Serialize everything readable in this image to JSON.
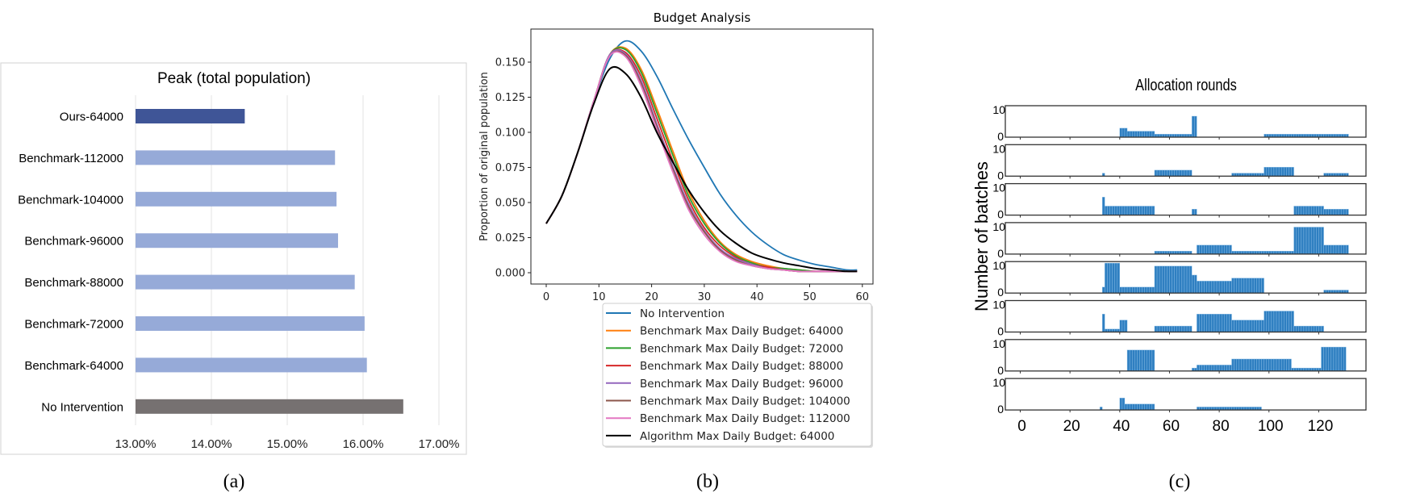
{
  "captions": {
    "a": "(a)",
    "b": "(b)",
    "c": "(c)"
  },
  "chart_data": [
    {
      "type": "bar",
      "orientation": "horizontal",
      "title": "Peak (total population)",
      "categories": [
        "Ours-64000",
        "Benchmark-112000",
        "Benchmark-104000",
        "Benchmark-96000",
        "Benchmark-88000",
        "Benchmark-72000",
        "Benchmark-64000",
        "No Intervention"
      ],
      "values": [
        14.44,
        15.63,
        15.65,
        15.67,
        15.89,
        16.02,
        16.05,
        16.53
      ],
      "colors": [
        "#3f5597",
        "#96aad8",
        "#96aad8",
        "#96aad8",
        "#96aad8",
        "#96aad8",
        "#96aad8",
        "#767171"
      ],
      "xlim": [
        13,
        17
      ],
      "x_ticks": [
        13,
        14,
        15,
        16,
        17
      ],
      "x_tick_labels": [
        "13.00%",
        "14.00%",
        "15.00%",
        "16.00%",
        "17.00%"
      ],
      "grid": true,
      "xlabel": "",
      "ylabel": ""
    },
    {
      "type": "line",
      "title": "Budget Analysis",
      "xlabel": "",
      "ylabel": "Proportion of original population",
      "xlim": [
        -3,
        62
      ],
      "ylim": [
        -0.008,
        0.174
      ],
      "x_ticks": [
        0,
        10,
        20,
        30,
        40,
        50,
        60
      ],
      "y_ticks": [
        0,
        0.025,
        0.05,
        0.075,
        0.1,
        0.125,
        0.15
      ],
      "y_tick_labels": [
        "0.000",
        "0.025",
        "0.050",
        "0.075",
        "0.100",
        "0.125",
        "0.150"
      ],
      "legend_position": "below",
      "x": [
        0,
        3,
        6,
        9,
        12,
        15,
        18,
        21,
        24,
        27,
        30,
        33,
        36,
        39,
        42,
        45,
        48,
        51,
        54,
        57,
        59
      ],
      "series": [
        {
          "name": "No Intervention",
          "color": "#1f77b4",
          "values": [
            0.035,
            0.055,
            0.086,
            0.122,
            0.152,
            0.165,
            0.158,
            0.14,
            0.117,
            0.095,
            0.075,
            0.056,
            0.041,
            0.029,
            0.02,
            0.013,
            0.009,
            0.006,
            0.004,
            0.002,
            0.002
          ]
        },
        {
          "name": "Benchmark Max Daily Budget: 64000",
          "color": "#ff7f0e",
          "values": [
            0.035,
            0.055,
            0.086,
            0.122,
            0.155,
            0.16,
            0.145,
            0.117,
            0.087,
            0.058,
            0.037,
            0.022,
            0.013,
            0.008,
            0.005,
            0.003,
            0.002,
            0.001,
            0.001,
            0.001,
            0.001
          ]
        },
        {
          "name": "Benchmark Max Daily Budget: 72000",
          "color": "#2ca02c",
          "values": [
            0.035,
            0.055,
            0.086,
            0.122,
            0.155,
            0.159,
            0.143,
            0.114,
            0.084,
            0.055,
            0.035,
            0.021,
            0.012,
            0.007,
            0.004,
            0.003,
            0.002,
            0.001,
            0.001,
            0.001,
            0.001
          ]
        },
        {
          "name": "Benchmark Max Daily Budget: 88000",
          "color": "#d62728",
          "values": [
            0.035,
            0.055,
            0.086,
            0.122,
            0.155,
            0.157,
            0.14,
            0.11,
            0.08,
            0.052,
            0.032,
            0.019,
            0.011,
            0.006,
            0.004,
            0.002,
            0.001,
            0.001,
            0.001,
            0.001,
            0.001
          ]
        },
        {
          "name": "Benchmark Max Daily Budget: 96000",
          "color": "#9467bd",
          "values": [
            0.035,
            0.055,
            0.086,
            0.122,
            0.155,
            0.156,
            0.137,
            0.106,
            0.076,
            0.049,
            0.03,
            0.017,
            0.01,
            0.006,
            0.003,
            0.002,
            0.001,
            0.001,
            0.001,
            0.001,
            0.001
          ]
        },
        {
          "name": "Benchmark Max Daily Budget: 104000",
          "color": "#8c564b",
          "values": [
            0.035,
            0.055,
            0.086,
            0.122,
            0.154,
            0.155,
            0.135,
            0.104,
            0.074,
            0.047,
            0.029,
            0.016,
            0.009,
            0.005,
            0.003,
            0.002,
            0.001,
            0.001,
            0.001,
            0.001,
            0.001
          ]
        },
        {
          "name": "Benchmark Max Daily Budget: 112000",
          "color": "#e377c2",
          "values": [
            0.035,
            0.055,
            0.086,
            0.122,
            0.154,
            0.154,
            0.133,
            0.102,
            0.072,
            0.045,
            0.027,
            0.015,
            0.008,
            0.005,
            0.003,
            0.002,
            0.001,
            0.001,
            0.001,
            0.001,
            0.001
          ]
        },
        {
          "name": "Algorithm Max Daily Budget: 64000",
          "color": "#000000",
          "values": [
            0.035,
            0.055,
            0.086,
            0.12,
            0.145,
            0.142,
            0.125,
            0.1,
            0.079,
            0.059,
            0.043,
            0.03,
            0.021,
            0.014,
            0.01,
            0.007,
            0.005,
            0.003,
            0.002,
            0.001,
            0.001
          ]
        }
      ]
    },
    {
      "type": "bar",
      "subtype": "stacked-small-multiples",
      "title": "Allocation rounds",
      "ylabel": "Number of batches",
      "xlabel": "",
      "xlim": [
        -6,
        139
      ],
      "ylim": [
        0,
        10.5
      ],
      "x_ticks": [
        0,
        20,
        40,
        60,
        80,
        100,
        120
      ],
      "y_tick_labels": [
        "0",
        "10"
      ],
      "bar_color": "#2f7fc1",
      "subplots": [
        {
          "segments": [
            [
              40,
              43,
              3
            ],
            [
              43,
              54,
              2
            ],
            [
              54,
              69,
              1
            ],
            [
              69,
              71,
              7
            ],
            [
              98,
              132,
              1
            ]
          ]
        },
        {
          "segments": [
            [
              33,
              34,
              1
            ],
            [
              54,
              69,
              2
            ],
            [
              85,
              98,
              1
            ],
            [
              98,
              110,
              3
            ],
            [
              122,
              132,
              1
            ]
          ]
        },
        {
          "segments": [
            [
              33,
              34,
              6
            ],
            [
              34,
              54,
              3
            ],
            [
              69,
              71,
              2
            ],
            [
              110,
              122,
              3
            ],
            [
              122,
              132,
              2
            ]
          ]
        },
        {
          "segments": [
            [
              54,
              69,
              1
            ],
            [
              71,
              85,
              3
            ],
            [
              85,
              110,
              1
            ],
            [
              110,
              122,
              9
            ],
            [
              122,
              132,
              3
            ]
          ]
        },
        {
          "segments": [
            [
              33,
              34,
              2
            ],
            [
              34,
              40,
              10
            ],
            [
              40,
              54,
              2
            ],
            [
              54,
              69,
              9
            ],
            [
              69,
              71,
              6
            ],
            [
              71,
              85,
              4
            ],
            [
              85,
              98,
              5
            ],
            [
              122,
              132,
              1
            ]
          ]
        },
        {
          "segments": [
            [
              33,
              34,
              6
            ],
            [
              34,
              40,
              1
            ],
            [
              40,
              43,
              4
            ],
            [
              54,
              69,
              2
            ],
            [
              71,
              85,
              6
            ],
            [
              85,
              98,
              4
            ],
            [
              98,
              110,
              7
            ],
            [
              110,
              122,
              2
            ]
          ]
        },
        {
          "segments": [
            [
              43,
              54,
              7
            ],
            [
              69,
              71,
              1
            ],
            [
              71,
              85,
              2
            ],
            [
              85,
              109,
              4
            ],
            [
              109,
              121,
              1
            ],
            [
              121,
              131,
              8
            ]
          ]
        },
        {
          "segments": [
            [
              32,
              33,
              1
            ],
            [
              40,
              42,
              4
            ],
            [
              42,
              54,
              2
            ],
            [
              71,
              97,
              1
            ]
          ]
        }
      ]
    }
  ]
}
